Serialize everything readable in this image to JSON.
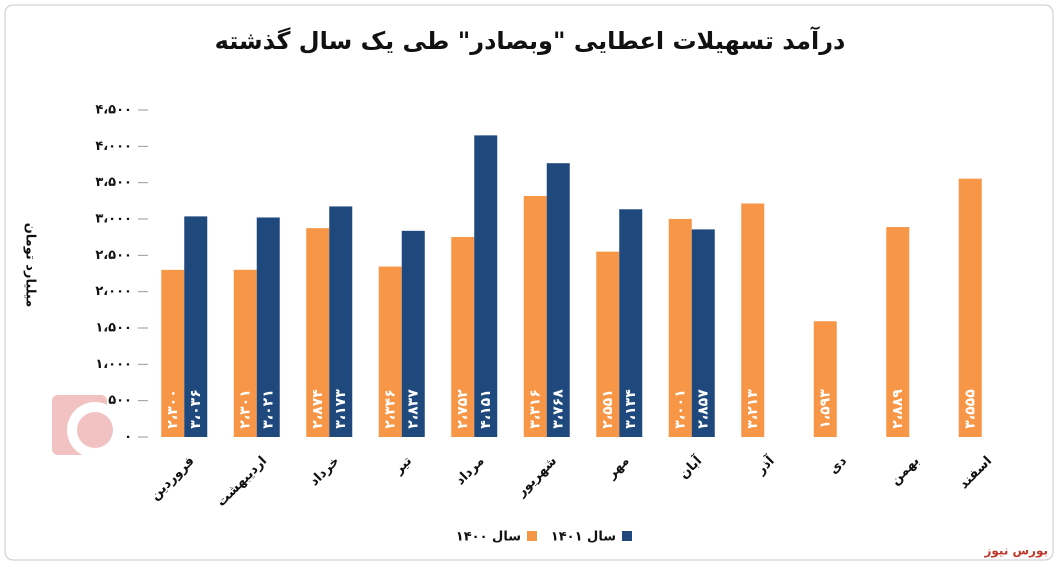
{
  "chart_data": {
    "type": "bar",
    "title": "درآمد تسهیلات اعطایی \"وبصادر\" طی یک سال گذشته",
    "y_label": "میلیارد تومان",
    "categories": [
      "فروردین",
      "اردیبهشت",
      "خرداد",
      "تیر",
      "مرداد",
      "شهریور",
      "مهر",
      "آبان",
      "آذر",
      "دی",
      "بهمن",
      "اسفند"
    ],
    "series": [
      {
        "name": "سال ۱۴۰۰",
        "color": "#f79646",
        "values": [
          2300,
          2301,
          2874,
          2346,
          2752,
          3316,
          2551,
          3001,
          3213,
          1593,
          2889,
          3555
        ],
        "value_labels": [
          "۲،۳۰۰",
          "۲،۳۰۱",
          "۲،۸۷۴",
          "۲،۳۴۶",
          "۲،۷۵۲",
          "۳،۳۱۶",
          "۲،۵۵۱",
          "۳،۰۰۱",
          "۳،۲۱۳",
          "۱،۵۹۳",
          "۲،۸۸۹",
          "۳،۵۵۵"
        ]
      },
      {
        "name": "سال ۱۴۰۱",
        "color": "#1f497d",
        "values": [
          3036,
          3021,
          3173,
          2837,
          4151,
          3768,
          3134,
          2857,
          null,
          null,
          null,
          null
        ],
        "value_labels": [
          "۳،۰۳۶",
          "۳،۰۲۱",
          "۳،۱۷۳",
          "۲،۸۳۷",
          "۴،۱۵۱",
          "۳،۷۶۸",
          "۳،۱۳۴",
          "۲،۸۵۷",
          null,
          null,
          null,
          null
        ]
      }
    ],
    "ylim": [
      0,
      4500
    ],
    "yticks": [
      {
        "value": 0,
        "label": "۰"
      },
      {
        "value": 500,
        "label": "۵۰۰"
      },
      {
        "value": 1000,
        "label": "۱،۰۰۰"
      },
      {
        "value": 1500,
        "label": "۱،۵۰۰"
      },
      {
        "value": 2000,
        "label": "۲،۰۰۰"
      },
      {
        "value": 2500,
        "label": "۲،۵۰۰"
      },
      {
        "value": 3000,
        "label": "۳،۰۰۰"
      },
      {
        "value": 3500,
        "label": "۳،۵۰۰"
      },
      {
        "value": 4000,
        "label": "۴،۰۰۰"
      },
      {
        "value": 4500,
        "label": "۴،۵۰۰"
      }
    ],
    "grid": false,
    "legend": "bottom",
    "source": "بورس نیوز"
  }
}
